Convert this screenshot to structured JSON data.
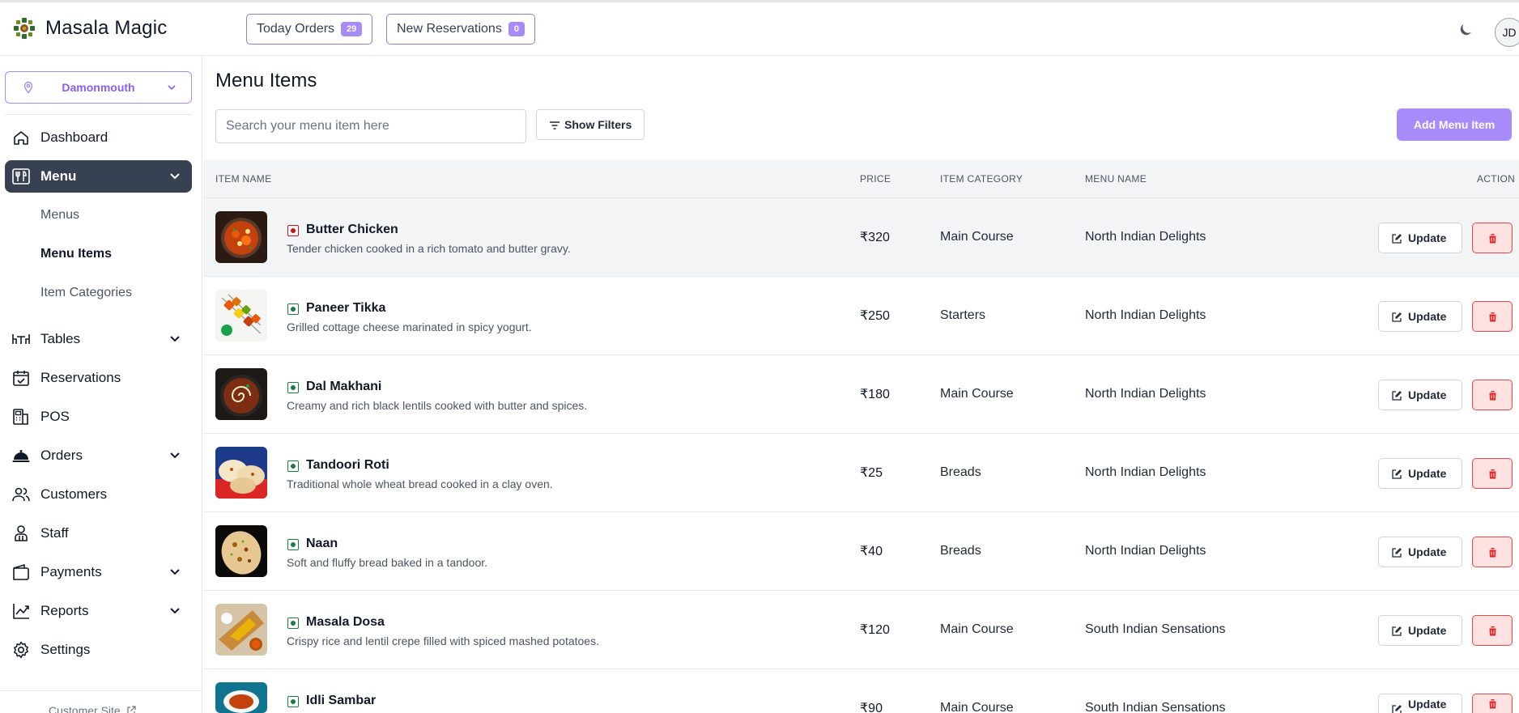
{
  "app": {
    "brand": "Masala Magic",
    "user_initials": "JD"
  },
  "header": {
    "today_orders": {
      "label": "Today Orders",
      "count": "29"
    },
    "new_reservations": {
      "label": "New Reservations",
      "count": "0"
    },
    "theme_icon": "moon-icon"
  },
  "sidebar": {
    "branch": "Damonmouth",
    "items": {
      "dashboard": "Dashboard",
      "menu": "Menu",
      "menus": "Menus",
      "menu_items": "Menu Items",
      "item_categories": "Item Categories",
      "tables": "Tables",
      "reservations": "Reservations",
      "pos": "POS",
      "orders": "Orders",
      "customers": "Customers",
      "staff": "Staff",
      "payments": "Payments",
      "reports": "Reports",
      "settings": "Settings"
    },
    "customer_site": "Customer Site"
  },
  "main": {
    "title": "Menu Items",
    "search_placeholder": "Search your menu item here",
    "show_filters": "Show Filters",
    "add_button": "Add Menu Item",
    "columns": {
      "name": "ITEM NAME",
      "price": "PRICE",
      "category": "ITEM CATEGORY",
      "menu": "MENU NAME",
      "action": "ACTION"
    },
    "update_label": "Update",
    "accent_color": "#a78bfa",
    "rows": [
      {
        "name": "Butter Chicken",
        "desc": "Tender chicken cooked in a rich tomato and butter gravy.",
        "price": "₹320",
        "category": "Main Course",
        "menu": "North Indian Delights",
        "type": "non-veg"
      },
      {
        "name": "Paneer Tikka",
        "desc": "Grilled cottage cheese marinated in spicy yogurt.",
        "price": "₹250",
        "category": "Starters",
        "menu": "North Indian Delights",
        "type": "veg"
      },
      {
        "name": "Dal Makhani",
        "desc": "Creamy and rich black lentils cooked with butter and spices.",
        "price": "₹180",
        "category": "Main Course",
        "menu": "North Indian Delights",
        "type": "veg"
      },
      {
        "name": "Tandoori Roti",
        "desc": "Traditional whole wheat bread cooked in a clay oven.",
        "price": "₹25",
        "category": "Breads",
        "menu": "North Indian Delights",
        "type": "veg"
      },
      {
        "name": "Naan",
        "desc": "Soft and fluffy bread baked in a tandoor.",
        "price": "₹40",
        "category": "Breads",
        "menu": "North Indian Delights",
        "type": "veg"
      },
      {
        "name": "Masala Dosa",
        "desc": "Crispy rice and lentil crepe filled with spiced mashed potatoes.",
        "price": "₹120",
        "category": "Main Course",
        "menu": "South Indian Sensations",
        "type": "veg"
      },
      {
        "name": "Idli Sambar",
        "desc": "",
        "price": "₹90",
        "category": "Main Course",
        "menu": "South Indian Sensations",
        "type": "veg"
      }
    ]
  }
}
